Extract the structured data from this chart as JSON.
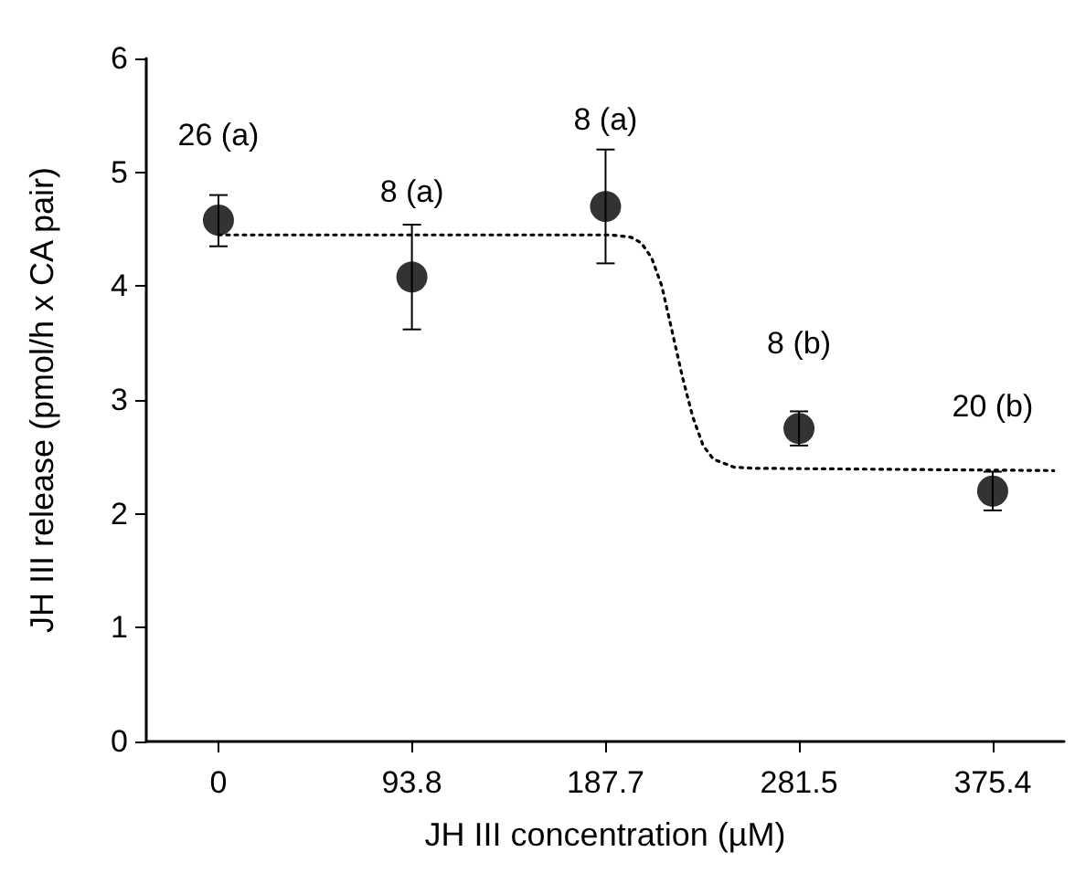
{
  "chart_data": {
    "type": "scatter",
    "xlabel": "JH III concentration (µM)",
    "ylabel": "JH III release (pmol/h x CA pair)",
    "xlim": [
      -35,
      410
    ],
    "xticks": [
      0,
      93.8,
      187.7,
      281.5,
      375.4
    ],
    "ylim": [
      0,
      6
    ],
    "yticks": [
      0,
      1,
      2,
      3,
      4,
      5,
      6
    ],
    "grid": false,
    "marker": "circle",
    "series": [
      {
        "type": "scatter",
        "color": "#000000",
        "x": [
          0,
          93.8,
          187.7,
          281.5,
          375.4
        ],
        "values": [
          4.58,
          4.08,
          4.7,
          2.75,
          2.2
        ],
        "errors": [
          [
            4.35,
            4.8
          ],
          [
            3.62,
            4.54
          ],
          [
            4.2,
            5.2
          ],
          [
            2.6,
            2.9
          ],
          [
            2.03,
            2.37
          ]
        ]
      },
      {
        "type": "line",
        "color": "#000000",
        "line_style": "dotted",
        "marker": "none",
        "x": [
          0,
          190,
          200,
          205,
          210,
          215,
          220,
          225,
          230,
          235,
          240,
          250,
          260,
          405
        ],
        "values": [
          4.45,
          4.45,
          4.43,
          4.38,
          4.25,
          4.0,
          3.6,
          3.2,
          2.85,
          2.6,
          2.48,
          2.41,
          2.4,
          2.38
        ]
      }
    ],
    "annotations": [
      {
        "text": "26 (a)",
        "x": 0,
        "y": 4.58
      },
      {
        "text": "8 (a)",
        "x": 93.8,
        "y": 4.08
      },
      {
        "text": "8 (a)",
        "x": 187.7,
        "y": 4.7
      },
      {
        "text": "8 (b)",
        "x": 281.5,
        "y": 2.75
      },
      {
        "text": "20 (b)",
        "x": 375.4,
        "y": 2.2
      }
    ]
  }
}
